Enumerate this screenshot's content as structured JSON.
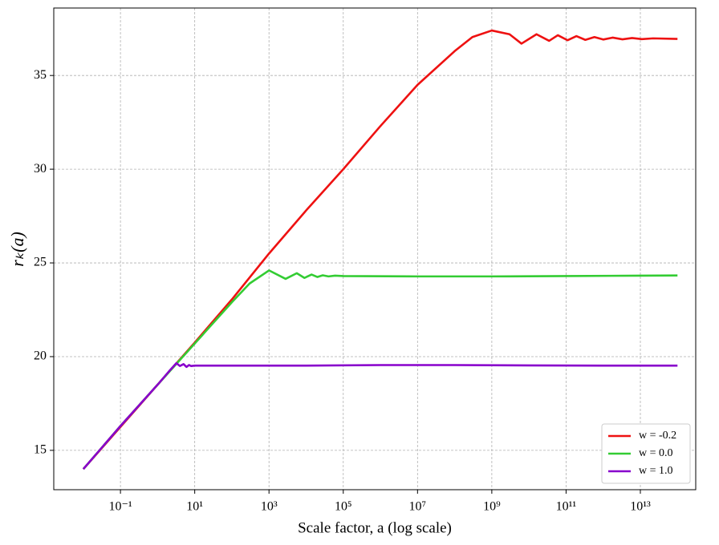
{
  "chart_data": {
    "type": "line",
    "xlabel": "Scale factor, a (log scale)",
    "ylabel": "rₖ(a)",
    "xscale": "log",
    "xlim": [
      0.0016,
      310000000000000.0
    ],
    "ylim": [
      12.9,
      38.6
    ],
    "xticks": [
      {
        "value": 0.1,
        "label": "10⁻¹"
      },
      {
        "value": 10,
        "label": "10¹"
      },
      {
        "value": 1000,
        "label": "10³"
      },
      {
        "value": 100000.0,
        "label": "10⁵"
      },
      {
        "value": 10000000.0,
        "label": "10⁷"
      },
      {
        "value": 1000000000.0,
        "label": "10⁹"
      },
      {
        "value": 100000000000.0,
        "label": "10¹¹"
      },
      {
        "value": 10000000000000.0,
        "label": "10¹³"
      }
    ],
    "yticks": [
      15,
      20,
      25,
      30,
      35
    ],
    "grid": true,
    "legend": "lower right",
    "series": [
      {
        "name": "w = -0.2",
        "color": "#ee1111",
        "x": [
          0.01,
          1,
          10,
          100,
          1000,
          10000.0,
          100000.0,
          1000000.0,
          10000000.0,
          100000000.0,
          300000000.0,
          1000000000.0,
          3000000000.0,
          6300000000.0,
          16000000000.0,
          35000000000.0,
          60000000000.0,
          110000000000.0,
          190000000000.0,
          330000000000.0,
          580000000000.0,
          1000000000000.0,
          1800000000000.0,
          3300000000000.0,
          6000000000000.0,
          11000000000000.0,
          22000000000000.0,
          100000000000000.0
        ],
        "values": [
          14,
          18.5,
          20.75,
          23.05,
          25.5,
          27.8,
          30.0,
          32.3,
          34.5,
          36.3,
          37.05,
          37.4,
          37.2,
          36.7,
          37.2,
          36.85,
          37.15,
          36.88,
          37.1,
          36.9,
          37.05,
          36.92,
          37.02,
          36.93,
          37.0,
          36.94,
          36.98,
          36.95
        ]
      },
      {
        "name": "w = 0.0",
        "color": "#33cc33",
        "x": [
          0.01,
          0.1,
          1,
          10,
          100,
          300,
          1000,
          2800,
          5600,
          9000,
          14000,
          20000,
          28000,
          40000,
          60000,
          100000.0,
          10000000.0,
          1000000000.0,
          100000000000.0,
          10000000000000.0,
          100000000000000.0
        ],
        "values": [
          14,
          16.3,
          18.5,
          20.7,
          22.9,
          23.9,
          24.6,
          24.15,
          24.45,
          24.2,
          24.38,
          24.25,
          24.34,
          24.28,
          24.32,
          24.3,
          24.28,
          24.28,
          24.3,
          24.32,
          24.33
        ]
      },
      {
        "name": "w = 1.0",
        "color": "#8800cc",
        "x": [
          0.01,
          0.1,
          1,
          2,
          3.2,
          4,
          5,
          6,
          7,
          8,
          10,
          100,
          10000.0,
          1000000.0,
          100000000.0,
          10000000000.0,
          1000000000000.0,
          100000000000000.0
        ],
        "values": [
          14,
          16.3,
          18.5,
          19.2,
          19.65,
          19.5,
          19.6,
          19.45,
          19.55,
          19.5,
          19.52,
          19.52,
          19.52,
          19.55,
          19.55,
          19.53,
          19.52,
          19.52
        ]
      }
    ]
  }
}
